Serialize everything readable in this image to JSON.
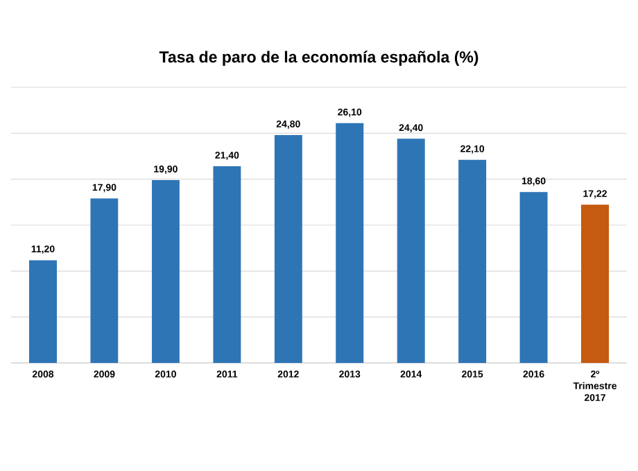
{
  "chart_data": {
    "type": "bar",
    "title": "Tasa de paro de la economía española (%)",
    "categories": [
      "2008",
      "2009",
      "2010",
      "2011",
      "2012",
      "2013",
      "2014",
      "2015",
      "2016",
      "2º Trimestre 2017"
    ],
    "values": [
      11.2,
      17.9,
      19.9,
      21.4,
      24.8,
      26.1,
      24.4,
      22.1,
      18.6,
      17.22
    ],
    "value_labels": [
      "11,20",
      "17,90",
      "19,90",
      "21,40",
      "24,80",
      "26,10",
      "24,40",
      "22,10",
      "18,60",
      "17,22"
    ],
    "colors": [
      "#2e75b6",
      "#2e75b6",
      "#2e75b6",
      "#2e75b6",
      "#2e75b6",
      "#2e75b6",
      "#2e75b6",
      "#2e75b6",
      "#2e75b6",
      "#c55a11"
    ],
    "yticks": [
      {
        "value": 0,
        "label": null
      },
      {
        "value": 5,
        "label": null
      },
      {
        "value": 10,
        "label": null
      },
      {
        "value": 15,
        "label": null
      },
      {
        "value": 20,
        "label": null
      },
      {
        "value": 25,
        "label": null
      },
      {
        "value": 30,
        "label": null
      }
    ],
    "grid": "y",
    "tick_labels": "x"
  }
}
